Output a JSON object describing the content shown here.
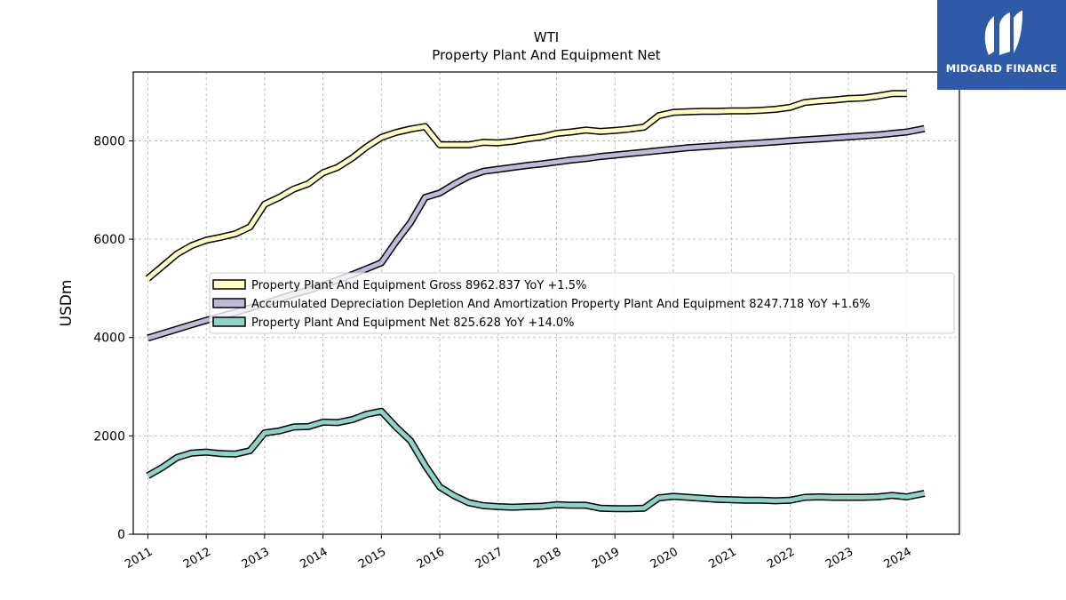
{
  "brand": {
    "name": "MIDGARD FINANCE",
    "color": "#2f5aa8"
  },
  "chart_data": {
    "type": "line",
    "title": "WTI",
    "subtitle": "Property Plant And Equipment Net",
    "ylabel": "USDm",
    "xlabel": "",
    "ylim": [
      0,
      9400
    ],
    "xlim": [
      2010.75,
      2024.9
    ],
    "yticks": [
      0,
      2000,
      4000,
      6000,
      8000
    ],
    "xticks": [
      "2011",
      "2012",
      "2013",
      "2014",
      "2015",
      "2016",
      "2017",
      "2018",
      "2019",
      "2020",
      "2021",
      "2022",
      "2023",
      "2024"
    ],
    "grid": true,
    "legend_position": "center",
    "series": [
      {
        "name": "Property Plant And Equipment Gross",
        "legend_label": "Property Plant And Equipment Gross  8962.837 YoY +1.5%",
        "color": "#ffffbf",
        "x": [
          2011.0,
          2011.25,
          2011.5,
          2011.75,
          2012.0,
          2012.25,
          2012.5,
          2012.75,
          2013.0,
          2013.25,
          2013.5,
          2013.75,
          2014.0,
          2014.25,
          2014.5,
          2014.75,
          2015.0,
          2015.25,
          2015.5,
          2015.75,
          2016.0,
          2016.25,
          2016.5,
          2016.75,
          2017.0,
          2017.25,
          2017.5,
          2017.75,
          2018.0,
          2018.25,
          2018.5,
          2018.75,
          2019.0,
          2019.25,
          2019.5,
          2019.75,
          2020.0,
          2020.25,
          2020.5,
          2020.75,
          2021.0,
          2021.25,
          2021.5,
          2021.75,
          2022.0,
          2022.25,
          2022.5,
          2022.75,
          2023.0,
          2023.25,
          2023.5,
          2023.75,
          2024.0
        ],
        "y": [
          5200,
          5450,
          5700,
          5870,
          5980,
          6040,
          6110,
          6250,
          6710,
          6850,
          7020,
          7130,
          7350,
          7460,
          7650,
          7880,
          8070,
          8170,
          8240,
          8290,
          7920,
          7920,
          7920,
          7970,
          7960,
          7990,
          8040,
          8080,
          8150,
          8180,
          8220,
          8190,
          8210,
          8240,
          8280,
          8510,
          8580,
          8590,
          8600,
          8600,
          8610,
          8610,
          8620,
          8640,
          8680,
          8780,
          8810,
          8830,
          8860,
          8870,
          8910,
          8960,
          8962
        ]
      },
      {
        "name": "Accumulated Depreciation Depletion And Amortization Property Plant And Equipment",
        "legend_label": "Accumulated Depreciation Depletion And Amortization Property Plant And Equipment  8247.718 YoY +1.6%",
        "color": "#bebada",
        "x": [
          2011.0,
          2011.25,
          2011.5,
          2011.75,
          2012.0,
          2012.25,
          2012.5,
          2012.75,
          2013.0,
          2013.25,
          2013.5,
          2013.75,
          2014.0,
          2014.25,
          2014.5,
          2014.75,
          2015.0,
          2015.25,
          2015.5,
          2015.75,
          2016.0,
          2016.25,
          2016.5,
          2016.75,
          2017.0,
          2017.25,
          2017.5,
          2017.75,
          2018.0,
          2018.25,
          2018.5,
          2018.75,
          2019.0,
          2019.25,
          2019.5,
          2019.75,
          2020.0,
          2020.25,
          2020.5,
          2020.75,
          2021.0,
          2021.25,
          2021.5,
          2021.75,
          2022.0,
          2022.25,
          2022.5,
          2022.75,
          2023.0,
          2023.25,
          2023.5,
          2023.75,
          2024.0,
          2024.3
        ],
        "y": [
          3990,
          4080,
          4170,
          4260,
          4350,
          4430,
          4510,
          4600,
          4690,
          4790,
          4880,
          4960,
          5060,
          5170,
          5280,
          5400,
          5520,
          5950,
          6340,
          6850,
          6940,
          7120,
          7280,
          7380,
          7420,
          7460,
          7500,
          7530,
          7570,
          7610,
          7640,
          7680,
          7710,
          7740,
          7770,
          7800,
          7830,
          7860,
          7880,
          7900,
          7920,
          7940,
          7960,
          7980,
          8000,
          8020,
          8040,
          8060,
          8080,
          8100,
          8120,
          8150,
          8180,
          8248
        ]
      },
      {
        "name": "Property Plant And Equipment Net",
        "legend_label": "Property Plant And Equipment Net  825.628 YoY +14.0%",
        "color": "#8dd3c7",
        "x": [
          2011.0,
          2011.25,
          2011.5,
          2011.75,
          2012.0,
          2012.25,
          2012.5,
          2012.75,
          2013.0,
          2013.25,
          2013.5,
          2013.75,
          2014.0,
          2014.25,
          2014.5,
          2014.75,
          2015.0,
          2015.25,
          2015.5,
          2015.75,
          2016.0,
          2016.25,
          2016.5,
          2016.75,
          2017.0,
          2017.25,
          2017.5,
          2017.75,
          2018.0,
          2018.25,
          2018.5,
          2018.75,
          2019.0,
          2019.25,
          2019.5,
          2019.75,
          2020.0,
          2020.25,
          2020.5,
          2020.75,
          2021.0,
          2021.25,
          2021.5,
          2021.75,
          2022.0,
          2022.25,
          2022.5,
          2022.75,
          2023.0,
          2023.25,
          2023.5,
          2023.75,
          2024.0,
          2024.3
        ],
        "y": [
          1190,
          1360,
          1560,
          1650,
          1670,
          1640,
          1630,
          1700,
          2060,
          2100,
          2180,
          2190,
          2280,
          2270,
          2330,
          2440,
          2500,
          2180,
          1900,
          1400,
          960,
          780,
          640,
          580,
          560,
          550,
          560,
          570,
          600,
          590,
          590,
          530,
          520,
          520,
          530,
          740,
          770,
          750,
          730,
          710,
          700,
          690,
          690,
          680,
          690,
          750,
          760,
          750,
          750,
          750,
          760,
          790,
          760,
          830
        ]
      }
    ]
  }
}
